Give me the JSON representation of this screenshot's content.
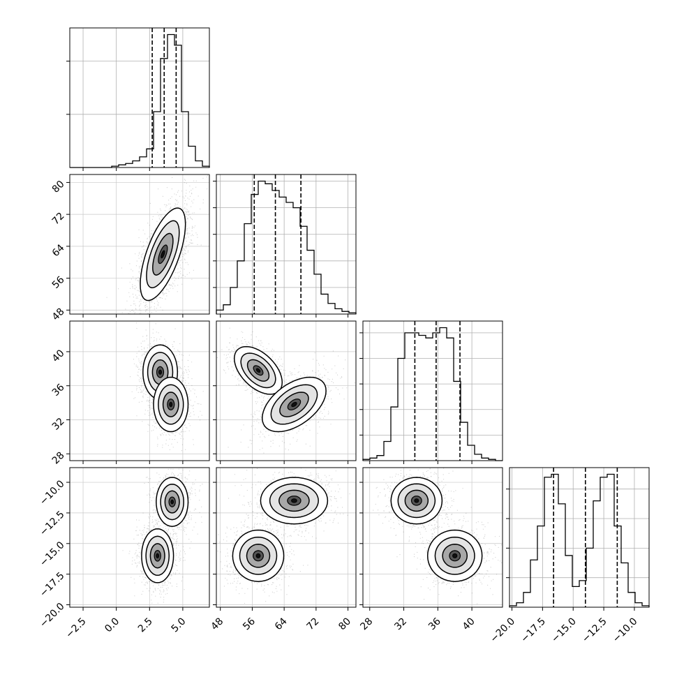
{
  "chart_data": {
    "type": "corner",
    "parameters": [
      {
        "ticks": [
          -2.5,
          0.0,
          2.5,
          5.0
        ],
        "tick_labels": [
          "−2.5",
          "0.0",
          "2.5",
          "5.0"
        ],
        "range": [
          -3.5,
          7.0
        ],
        "mean": 3.6,
        "sd": 0.85,
        "quantiles": [
          2.7,
          3.6,
          4.5
        ]
      },
      {
        "ticks": [
          48,
          56,
          64,
          72,
          80
        ],
        "tick_labels": [
          "48",
          "56",
          "64",
          "72",
          "80"
        ],
        "range": [
          47,
          82
        ],
        "mean": 62.0,
        "sd": 5.8,
        "quantiles": [
          56.5,
          61.8,
          68.2
        ]
      },
      {
        "ticks": [
          28,
          32,
          36,
          40
        ],
        "tick_labels": [
          "28",
          "32",
          "36",
          "40"
        ],
        "range": [
          27.2,
          43.6
        ],
        "mean": 35.8,
        "sd": 2.7,
        "quantiles": [
          33.3,
          35.8,
          38.6
        ]
      },
      {
        "ticks": [
          -20.0,
          -17.5,
          -15.0,
          -12.5,
          -10.0
        ],
        "tick_labels": [
          "−20.0",
          "−17.5",
          "−15.0",
          "−12.5",
          "−10.0"
        ],
        "range": [
          -20.2,
          -8.8
        ],
        "mean": -14.0,
        "sd": 2.2,
        "quantiles": [
          -16.6,
          -14.0,
          -11.4
        ]
      }
    ],
    "histograms": [
      {
        "bin_counts": [
          0,
          0,
          0,
          0,
          0,
          0,
          1,
          2,
          3,
          5,
          8,
          14,
          42,
          82,
          100,
          92,
          42,
          16,
          5,
          1
        ]
      },
      {
        "bin_counts": [
          3,
          7,
          20,
          40,
          68,
          90,
          100,
          98,
          93,
          88,
          84,
          80,
          66,
          48,
          30,
          15,
          8,
          4,
          2,
          1
        ]
      },
      {
        "bin_counts": [
          1,
          2,
          4,
          15,
          42,
          80,
          100,
          100,
          98,
          96,
          100,
          104,
          96,
          62,
          30,
          12,
          5,
          2,
          1,
          0
        ]
      },
      {
        "bin_counts": [
          1,
          3,
          10,
          32,
          55,
          88,
          90,
          70,
          35,
          14,
          18,
          40,
          72,
          88,
          90,
          55,
          30,
          10,
          3,
          1
        ]
      }
    ],
    "grid": true
  }
}
